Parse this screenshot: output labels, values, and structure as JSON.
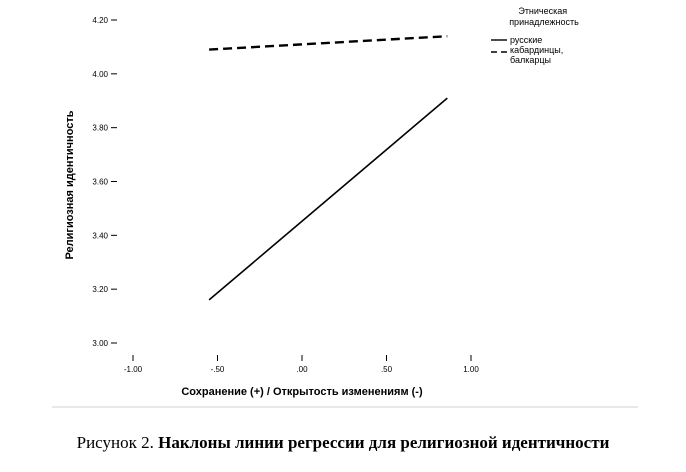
{
  "chart_data": {
    "type": "line",
    "xlabel": "Сохранение (+) / Открытость изменениям (-)",
    "ylabel": "Религиозная идентичность",
    "xlim": [
      -1.0,
      1.0
    ],
    "ylim": [
      3.0,
      4.2
    ],
    "x_ticks": [
      -1.0,
      -0.5,
      0.0,
      0.5,
      1.0
    ],
    "x_tick_labels": [
      "-1.00",
      "-.50",
      ".00",
      ".50",
      "1.00"
    ],
    "y_ticks": [
      3.0,
      3.2,
      3.4,
      3.6,
      3.8,
      4.0,
      4.2
    ],
    "y_tick_labels": [
      "3.00",
      "3.20",
      "3.40",
      "3.60",
      "3.80",
      "4.00",
      "4.20"
    ],
    "legend_title": "Этническая принадлежность",
    "legend_position": "top-right",
    "grid": false,
    "series": [
      {
        "name": "русские",
        "style": "solid",
        "color": "#000000",
        "x": [
          -0.55,
          0.86
        ],
        "y": [
          3.16,
          3.91
        ]
      },
      {
        "name": "кабардинцы, балкарцы",
        "style": "dashed",
        "color": "#000000",
        "x": [
          -0.55,
          0.86
        ],
        "y": [
          4.09,
          4.14
        ]
      }
    ]
  },
  "caption": {
    "prefix": "Рисунок 2. ",
    "bold": "Наклоны линии регрессии для религиозной идентичности"
  }
}
